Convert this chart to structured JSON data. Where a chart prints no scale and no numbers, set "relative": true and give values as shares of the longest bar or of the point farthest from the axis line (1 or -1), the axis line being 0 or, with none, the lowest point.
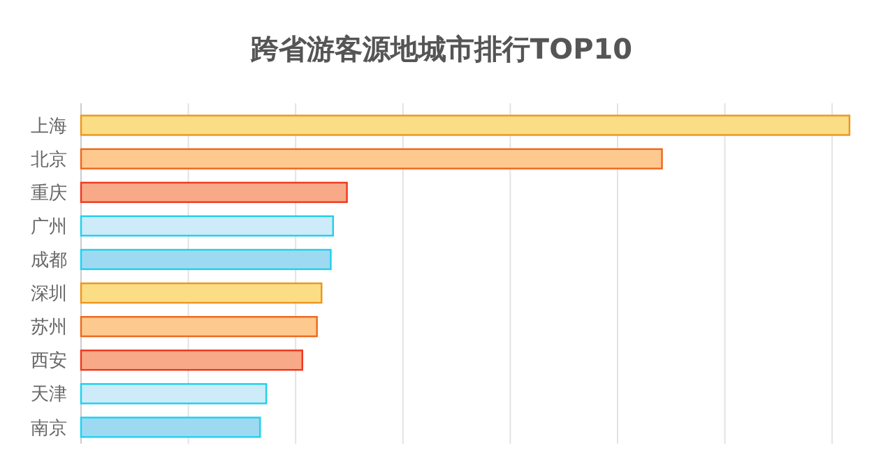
{
  "chart_data": {
    "type": "bar",
    "orientation": "horizontal",
    "relative": true,
    "title": "跨省游客源地城市排行TOP10",
    "grid": "x",
    "categories": [
      "上海",
      "北京",
      "重庆",
      "广州",
      "成都",
      "深圳",
      "苏州",
      "西安",
      "天津",
      "南京"
    ],
    "values": [
      1,
      0.756,
      0.346,
      0.328,
      0.325,
      0.313,
      0.307,
      0.288,
      0.241,
      0.233
    ],
    "colors": [
      "#fbdd85",
      "#fec98e",
      "#f8a988",
      "#cdebf8",
      "#9ed9f2",
      "#fbdd85",
      "#fdc98e",
      "#f8a988",
      "#cdebf8",
      "#9ed9f2"
    ]
  }
}
